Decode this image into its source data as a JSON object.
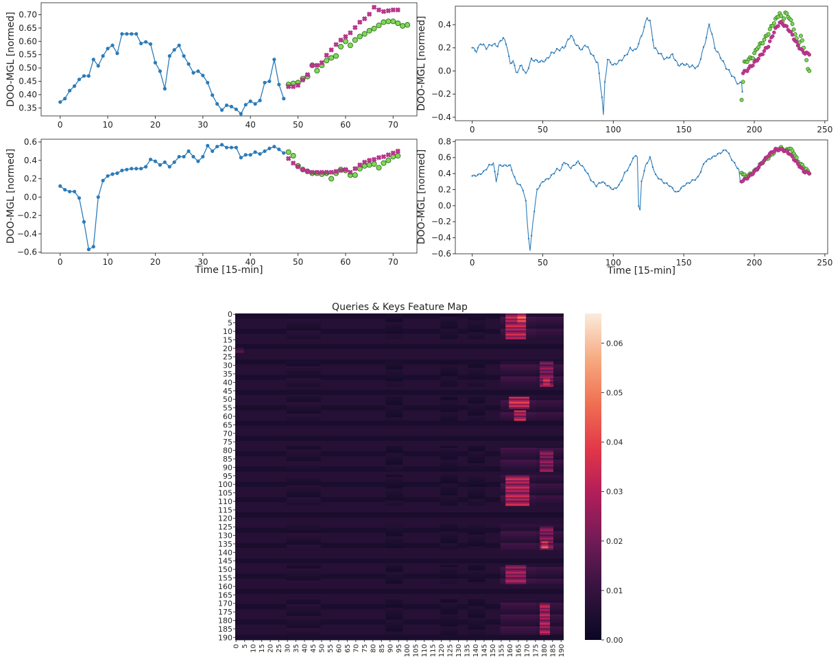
{
  "chart_data": [
    {
      "type": "line",
      "ylabel": "DOO-MGL [normed]",
      "xlabel": "",
      "xlim": [
        -4,
        75
      ],
      "ylim": [
        0.32,
        0.745
      ],
      "xticks": [
        0,
        10,
        20,
        30,
        40,
        50,
        60,
        70
      ],
      "yticks": [
        0.35,
        0.4,
        0.45,
        0.5,
        0.55,
        0.6,
        0.65,
        0.7
      ],
      "ytick_labels": [
        "0.35",
        "0.40",
        "0.45",
        "0.50",
        "0.55",
        "0.60",
        "0.65",
        "0.70"
      ],
      "series": [
        {
          "role": "history",
          "x_start": 0,
          "values": [
            0.372,
            0.385,
            0.415,
            0.432,
            0.457,
            0.47,
            0.47,
            0.532,
            0.508,
            0.545,
            0.573,
            0.585,
            0.555,
            0.628,
            0.628,
            0.628,
            0.628,
            0.592,
            0.598,
            0.59,
            0.52,
            0.488,
            0.422,
            0.545,
            0.568,
            0.585,
            0.545,
            0.515,
            0.482,
            0.488,
            0.472,
            0.445,
            0.398,
            0.365,
            0.342,
            0.36,
            0.355,
            0.345,
            0.328,
            0.362,
            0.375,
            0.365,
            0.378,
            0.445,
            0.45,
            0.532,
            0.438,
            0.385
          ]
        },
        {
          "role": "prediction",
          "x_start": 48,
          "values": [
            0.43,
            0.43,
            0.435,
            0.455,
            0.475,
            0.51,
            0.51,
            0.52,
            0.548,
            0.568,
            0.588,
            0.605,
            0.618,
            0.632,
            0.652,
            0.672,
            0.685,
            0.702,
            0.728,
            0.718,
            0.712,
            0.715,
            0.718,
            0.718
          ]
        },
        {
          "role": "actual",
          "x_start": 48,
          "values": [
            0.438,
            0.442,
            0.445,
            0.46,
            0.468,
            0.51,
            0.49,
            0.51,
            0.528,
            0.538,
            0.545,
            0.58,
            0.6,
            0.585,
            0.605,
            0.618,
            0.628,
            0.64,
            0.648,
            0.66,
            0.672,
            0.675,
            0.675,
            0.668,
            0.658,
            0.662
          ]
        }
      ]
    },
    {
      "type": "line",
      "ylabel": "DOO-MGL [normed]",
      "xlabel": "",
      "xlim": [
        -12,
        252
      ],
      "ylim": [
        -0.43,
        0.56
      ],
      "xticks": [
        0,
        50,
        100,
        150,
        200,
        250
      ],
      "yticks": [
        -0.4,
        -0.2,
        0.0,
        0.2,
        0.4
      ],
      "ytick_labels": [
        "−0.4",
        "−0.2",
        "0.0",
        "0.2",
        "0.4"
      ],
      "anchors": [
        [
          0,
          0.2
        ],
        [
          3,
          0.17
        ],
        [
          6,
          0.24
        ],
        [
          10,
          0.2
        ],
        [
          14,
          0.23
        ],
        [
          18,
          0.22
        ],
        [
          22,
          0.29
        ],
        [
          25,
          0.2
        ],
        [
          27,
          0.05
        ],
        [
          29,
          0.1
        ],
        [
          31,
          -0.02
        ],
        [
          35,
          0.05
        ],
        [
          38,
          -0.03
        ],
        [
          42,
          0.1
        ],
        [
          48,
          0.08
        ],
        [
          52,
          0.09
        ],
        [
          56,
          0.15
        ],
        [
          60,
          0.18
        ],
        [
          65,
          0.2
        ],
        [
          70,
          0.31
        ],
        [
          74,
          0.22
        ],
        [
          78,
          0.18
        ],
        [
          80,
          0.23
        ],
        [
          83,
          0.18
        ],
        [
          86,
          0.12
        ],
        [
          89,
          0.07
        ],
        [
          91,
          -0.13
        ],
        [
          92,
          -0.22
        ],
        [
          93,
          -0.39
        ],
        [
          94,
          -0.1
        ],
        [
          96,
          0.1
        ],
        [
          100,
          0.05
        ],
        [
          104,
          0.08
        ],
        [
          108,
          0.12
        ],
        [
          112,
          0.19
        ],
        [
          116,
          0.18
        ],
        [
          120,
          0.3
        ],
        [
          124,
          0.46
        ],
        [
          126,
          0.43
        ],
        [
          129,
          0.2
        ],
        [
          133,
          0.15
        ],
        [
          137,
          0.1
        ],
        [
          142,
          0.14
        ],
        [
          146,
          0.05
        ],
        [
          150,
          0.06
        ],
        [
          155,
          0.04
        ],
        [
          160,
          0.03
        ],
        [
          165,
          0.24
        ],
        [
          168,
          0.4
        ],
        [
          170,
          0.32
        ],
        [
          172,
          0.2
        ],
        [
          176,
          0.12
        ],
        [
          180,
          0.03
        ],
        [
          185,
          -0.05
        ],
        [
          189,
          -0.12
        ],
        [
          191,
          -0.09
        ],
        [
          191.5,
          -0.18
        ]
      ],
      "pred_anchors": [
        [
          192,
          -0.02
        ],
        [
          196,
          0.02
        ],
        [
          200,
          0.07
        ],
        [
          205,
          0.14
        ],
        [
          210,
          0.22
        ],
        [
          214,
          0.34
        ],
        [
          218,
          0.42
        ],
        [
          221,
          0.4
        ],
        [
          225,
          0.35
        ],
        [
          230,
          0.24
        ],
        [
          234,
          0.17
        ],
        [
          239,
          0.14
        ]
      ],
      "actual_anchors": [
        [
          191,
          -0.25
        ],
        [
          193,
          0.07
        ],
        [
          196,
          0.1
        ],
        [
          199,
          0.12
        ],
        [
          202,
          0.2
        ],
        [
          206,
          0.25
        ],
        [
          210,
          0.33
        ],
        [
          212,
          0.38
        ],
        [
          215,
          0.44
        ],
        [
          218,
          0.5
        ],
        [
          220,
          0.43
        ],
        [
          222,
          0.5
        ],
        [
          225,
          0.46
        ],
        [
          228,
          0.37
        ],
        [
          231,
          0.22
        ],
        [
          233,
          0.3
        ],
        [
          236,
          0.16
        ],
        [
          238,
          0.01
        ],
        [
          239,
          0.0
        ]
      ]
    },
    {
      "type": "line",
      "ylabel": "DOO-MGL [normed]",
      "xlabel": "Time [15-min]",
      "xlim": [
        -4,
        75
      ],
      "ylim": [
        -0.61,
        0.63
      ],
      "xticks": [
        0,
        10,
        20,
        30,
        40,
        50,
        60,
        70
      ],
      "yticks": [
        -0.6,
        -0.4,
        -0.2,
        0.0,
        0.2,
        0.4,
        0.6
      ],
      "ytick_labels": [
        "−0.6",
        "−0.4",
        "−0.2",
        "0.0",
        "0.2",
        "0.4",
        "0.6"
      ],
      "series": [
        {
          "role": "history",
          "x_start": 0,
          "values": [
            0.12,
            0.08,
            0.06,
            0.06,
            -0.01,
            -0.27,
            -0.57,
            -0.54,
            0.0,
            0.18,
            0.23,
            0.25,
            0.26,
            0.29,
            0.3,
            0.31,
            0.31,
            0.31,
            0.33,
            0.41,
            0.39,
            0.35,
            0.38,
            0.33,
            0.38,
            0.44,
            0.44,
            0.5,
            0.44,
            0.39,
            0.44,
            0.56,
            0.5,
            0.55,
            0.57,
            0.54,
            0.54,
            0.54,
            0.43,
            0.46,
            0.46,
            0.49,
            0.47,
            0.5,
            0.53,
            0.55,
            0.52,
            0.48
          ]
        },
        {
          "role": "prediction",
          "x_start": 48,
          "values": [
            0.42,
            0.37,
            0.33,
            0.3,
            0.28,
            0.27,
            0.27,
            0.27,
            0.27,
            0.27,
            0.28,
            0.29,
            0.3,
            0.27,
            0.31,
            0.35,
            0.38,
            0.4,
            0.41,
            0.43,
            0.44,
            0.46,
            0.48,
            0.5
          ]
        },
        {
          "role": "actual",
          "x_start": 48,
          "values": [
            0.49,
            0.45,
            0.34,
            0.3,
            0.28,
            0.26,
            0.26,
            0.25,
            0.26,
            0.2,
            0.26,
            0.3,
            0.29,
            0.24,
            0.24,
            0.31,
            0.34,
            0.35,
            0.36,
            0.32,
            0.37,
            0.4,
            0.44,
            0.45
          ]
        }
      ]
    },
    {
      "type": "line",
      "ylabel": "DOO-MGL [normed]",
      "xlabel": "Time [15-min]",
      "xlim": [
        -12,
        252
      ],
      "ylim": [
        -0.6,
        0.82
      ],
      "xticks": [
        0,
        50,
        100,
        150,
        200,
        250
      ],
      "yticks": [
        -0.6,
        -0.4,
        -0.2,
        0.0,
        0.2,
        0.4,
        0.6,
        0.8
      ],
      "ytick_labels": [
        "−0.6",
        "−0.4",
        "−0.2",
        "0.0",
        "0.2",
        "0.4",
        "0.6",
        "0.8"
      ],
      "anchors": [
        [
          0,
          0.37
        ],
        [
          4,
          0.38
        ],
        [
          8,
          0.42
        ],
        [
          12,
          0.5
        ],
        [
          15,
          0.53
        ],
        [
          17,
          0.3
        ],
        [
          19,
          0.5
        ],
        [
          23,
          0.5
        ],
        [
          27,
          0.5
        ],
        [
          31,
          0.3
        ],
        [
          34,
          0.25
        ],
        [
          36,
          0.2
        ],
        [
          38,
          0.05
        ],
        [
          39,
          -0.2
        ],
        [
          40,
          -0.4
        ],
        [
          41,
          -0.57
        ],
        [
          43,
          -0.2
        ],
        [
          46,
          0.2
        ],
        [
          50,
          0.3
        ],
        [
          55,
          0.35
        ],
        [
          60,
          0.45
        ],
        [
          63,
          0.45
        ],
        [
          65,
          0.55
        ],
        [
          70,
          0.47
        ],
        [
          75,
          0.55
        ],
        [
          80,
          0.45
        ],
        [
          85,
          0.3
        ],
        [
          88,
          0.25
        ],
        [
          92,
          0.3
        ],
        [
          96,
          0.25
        ],
        [
          100,
          0.2
        ],
        [
          104,
          0.25
        ],
        [
          108,
          0.4
        ],
        [
          112,
          0.5
        ],
        [
          114,
          0.6
        ],
        [
          117,
          0.62
        ],
        [
          118,
          0.0
        ],
        [
          119,
          -0.07
        ],
        [
          120,
          0.3
        ],
        [
          123,
          0.5
        ],
        [
          126,
          0.6
        ],
        [
          130,
          0.38
        ],
        [
          135,
          0.3
        ],
        [
          140,
          0.25
        ],
        [
          145,
          0.16
        ],
        [
          150,
          0.25
        ],
        [
          155,
          0.3
        ],
        [
          160,
          0.35
        ],
        [
          165,
          0.55
        ],
        [
          170,
          0.6
        ],
        [
          175,
          0.65
        ],
        [
          180,
          0.7
        ],
        [
          185,
          0.55
        ],
        [
          189,
          0.45
        ],
        [
          190,
          0.3
        ]
      ],
      "pred_anchors": [
        [
          191,
          0.3
        ],
        [
          196,
          0.36
        ],
        [
          200,
          0.42
        ],
        [
          205,
          0.52
        ],
        [
          210,
          0.63
        ],
        [
          215,
          0.7
        ],
        [
          220,
          0.7
        ],
        [
          225,
          0.65
        ],
        [
          230,
          0.54
        ],
        [
          235,
          0.43
        ],
        [
          239,
          0.4
        ]
      ],
      "actual_anchors": [
        [
          191,
          0.41
        ],
        [
          194,
          0.36
        ],
        [
          198,
          0.4
        ],
        [
          202,
          0.46
        ],
        [
          206,
          0.55
        ],
        [
          210,
          0.6
        ],
        [
          213,
          0.65
        ],
        [
          216,
          0.7
        ],
        [
          219,
          0.72
        ],
        [
          222,
          0.68
        ],
        [
          225,
          0.72
        ],
        [
          228,
          0.66
        ],
        [
          231,
          0.55
        ],
        [
          234,
          0.5
        ],
        [
          237,
          0.45
        ],
        [
          239,
          0.4
        ]
      ]
    },
    {
      "type": "heatmap",
      "title": "Queries & Keys Feature Map",
      "rows": 192,
      "cols": 192,
      "vmin": 0.0,
      "vmax": 0.065,
      "ytick_labels": [
        "0",
        "5",
        "10",
        "15",
        "20",
        "25",
        "30",
        "35",
        "40",
        "45",
        "50",
        "55",
        "60",
        "65",
        "70",
        "75",
        "80",
        "85",
        "90",
        "95",
        "100",
        "105",
        "110",
        "115",
        "120",
        "125",
        "130",
        "135",
        "140",
        "145",
        "150",
        "155",
        "160",
        "165",
        "170",
        "175",
        "180",
        "185",
        "190"
      ],
      "xtick_labels": [
        "0",
        "5",
        "10",
        "15",
        "20",
        "25",
        "30",
        "35",
        "40",
        "45",
        "50",
        "55",
        "60",
        "65",
        "70",
        "75",
        "80",
        "85",
        "90",
        "95",
        "100",
        "105",
        "110",
        "115",
        "120",
        "125",
        "130",
        "135",
        "140",
        "145",
        "150",
        "155",
        "160",
        "165",
        "170",
        "175",
        "180",
        "185",
        "190"
      ],
      "colorbar_ticks": [
        0.0,
        0.01,
        0.02,
        0.03,
        0.04,
        0.05,
        0.06
      ],
      "colorbar_labels": [
        "0.00",
        "0.01",
        "0.02",
        "0.03",
        "0.04",
        "0.05",
        "0.06"
      ],
      "row_groups": [
        [
          0,
          14
        ],
        [
          28,
          42
        ],
        [
          49,
          62
        ],
        [
          78,
          92
        ],
        [
          95,
          112
        ],
        [
          124,
          138
        ],
        [
          148,
          158
        ],
        [
          168,
          188
        ]
      ],
      "hot_cells": [
        {
          "r0": 0,
          "r1": 14,
          "c0": 158,
          "c1": 170,
          "v": 0.04
        },
        {
          "r0": 0,
          "r1": 5,
          "c0": 165,
          "c1": 170,
          "v": 0.055
        },
        {
          "r0": 28,
          "r1": 42,
          "c0": 178,
          "c1": 186,
          "v": 0.03
        },
        {
          "r0": 38,
          "r1": 41,
          "c0": 180,
          "c1": 184,
          "v": 0.05
        },
        {
          "r0": 49,
          "r1": 55,
          "c0": 160,
          "c1": 172,
          "v": 0.045
        },
        {
          "r0": 57,
          "r1": 62,
          "c0": 163,
          "c1": 170,
          "v": 0.04
        },
        {
          "r0": 80,
          "r1": 92,
          "c0": 178,
          "c1": 186,
          "v": 0.03
        },
        {
          "r0": 95,
          "r1": 112,
          "c0": 158,
          "c1": 172,
          "v": 0.04
        },
        {
          "r0": 125,
          "r1": 138,
          "c0": 178,
          "c1": 186,
          "v": 0.03
        },
        {
          "r0": 134,
          "r1": 137,
          "c0": 179,
          "c1": 183,
          "v": 0.05
        },
        {
          "r0": 148,
          "r1": 158,
          "c0": 158,
          "c1": 170,
          "v": 0.035
        },
        {
          "r0": 170,
          "r1": 188,
          "c0": 178,
          "c1": 184,
          "v": 0.038
        },
        {
          "r0": 20,
          "r1": 22,
          "c0": 0,
          "c1": 5,
          "v": 0.018
        }
      ]
    }
  ]
}
